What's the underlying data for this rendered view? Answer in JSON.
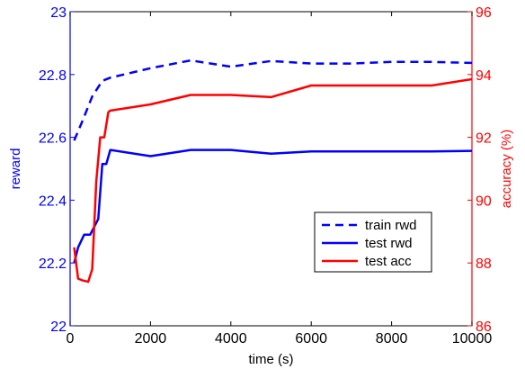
{
  "chart_data": {
    "type": "line",
    "title": "",
    "xlabel": "time (s)",
    "ylabel_left": "reward",
    "ylabel_right": "accuracy (%)",
    "xlim": [
      0,
      10000
    ],
    "ylim_left": [
      22,
      23
    ],
    "ylim_right": [
      86,
      96
    ],
    "x_ticks": [
      0,
      2000,
      4000,
      6000,
      8000,
      10000
    ],
    "y_left_ticks": [
      "22",
      "22.2",
      "22.4",
      "22.6",
      "22.8",
      "23"
    ],
    "y_right_ticks": [
      "86",
      "88",
      "90",
      "92",
      "94",
      "96"
    ],
    "left_axis_color": "#0000ff",
    "right_axis_color": "#ff0000",
    "grid": false,
    "legend_position": "lower-right",
    "series": [
      {
        "name": "train rwd",
        "axis": "left",
        "color": "#0000ff",
        "style": "dashed",
        "x": [
          100,
          300,
          550,
          800,
          1000,
          2000,
          3000,
          4000,
          5000,
          6000,
          7000,
          8000,
          9000,
          10000
        ],
        "y": [
          22.59,
          22.65,
          22.73,
          22.78,
          22.79,
          22.82,
          22.845,
          22.825,
          22.843,
          22.835,
          22.835,
          22.84,
          22.84,
          22.837
        ]
      },
      {
        "name": "test rwd",
        "axis": "left",
        "color": "#0000ff",
        "style": "solid",
        "x": [
          100,
          200,
          350,
          500,
          700,
          800,
          900,
          1000,
          2000,
          3000,
          4000,
          5000,
          6000,
          7000,
          8000,
          9000,
          10000
        ],
        "y": [
          22.2,
          22.25,
          22.29,
          22.29,
          22.34,
          22.515,
          22.515,
          22.56,
          22.54,
          22.56,
          22.56,
          22.548,
          22.555,
          22.555,
          22.555,
          22.555,
          22.557
        ]
      },
      {
        "name": "test acc",
        "axis": "right",
        "color": "#ff0000",
        "style": "solid",
        "x": [
          100,
          200,
          300,
          450,
          550,
          650,
          750,
          850,
          950,
          1000,
          2000,
          3000,
          4000,
          5000,
          6000,
          7000,
          8000,
          9000,
          10000
        ],
        "y": [
          88.5,
          87.5,
          87.45,
          87.4,
          87.8,
          90.6,
          92.0,
          92.0,
          92.8,
          92.85,
          93.05,
          93.35,
          93.35,
          93.28,
          93.65,
          93.65,
          93.65,
          93.65,
          93.85
        ]
      }
    ]
  }
}
